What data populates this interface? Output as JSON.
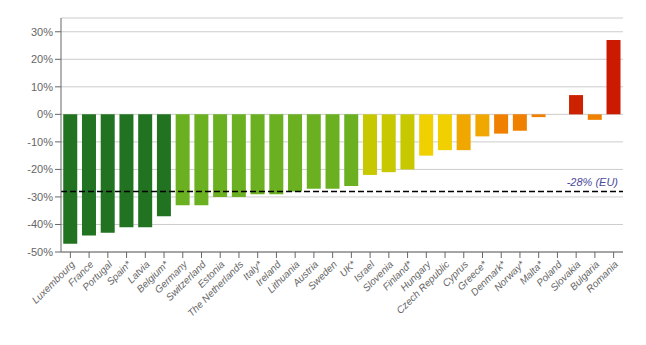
{
  "chart_data": {
    "type": "bar",
    "categories": [
      "Luxembourg",
      "France",
      "Portugal",
      "Spain*",
      "Latvia",
      "Belgium*",
      "Germany",
      "Switzerland",
      "Estonia",
      "The Netherlands",
      "Italy*",
      "Ireland",
      "Lithuania",
      "Austria",
      "Sweden",
      "UK*",
      "Israel",
      "Slovenia",
      "Finland*",
      "Hungary",
      "Czech Republic",
      "Cyprus",
      "Greece*",
      "Denmark*",
      "Norway*",
      "Malta*",
      "Poland",
      "Slovakia",
      "Bulgaria",
      "Romania"
    ],
    "values": [
      -47,
      -44,
      -43,
      -41,
      -41,
      -37,
      -33,
      -33,
      -30,
      -30,
      -29,
      -29,
      -28,
      -27,
      -27,
      -26,
      -22,
      -21,
      -20,
      -15,
      -13,
      -13,
      -8,
      -7,
      -6,
      -1,
      0,
      7,
      -2,
      27
    ],
    "colors": [
      "#217321",
      "#217321",
      "#217321",
      "#217321",
      "#217321",
      "#217321",
      "#6ab020",
      "#6ab020",
      "#6ab020",
      "#6ab020",
      "#6ab020",
      "#6ab020",
      "#6ab020",
      "#6ab020",
      "#6ab020",
      "#6ab020",
      "#c8c800",
      "#c8c800",
      "#c8c800",
      "#f0d000",
      "#f0d000",
      "#f0a800",
      "#f0a800",
      "#f08000",
      "#f08000",
      "#f08000",
      "#f08000",
      "#cc2200",
      "#f08000",
      "#cc1a00"
    ],
    "ylim": [
      -50,
      35
    ],
    "yticks": [
      {
        "value": -50,
        "label": "-50%"
      },
      {
        "value": -40,
        "label": "-40%"
      },
      {
        "value": -30,
        "label": "-30%"
      },
      {
        "value": -20,
        "label": "-20%"
      },
      {
        "value": -10,
        "label": "-10%"
      },
      {
        "value": 0,
        "label": "0%"
      },
      {
        "value": 10,
        "label": "10%"
      },
      {
        "value": 20,
        "label": "20%"
      },
      {
        "value": 30,
        "label": "30%"
      }
    ],
    "grid": true,
    "annotations": [
      {
        "text": "-28% (EU)",
        "y": -28
      }
    ]
  }
}
